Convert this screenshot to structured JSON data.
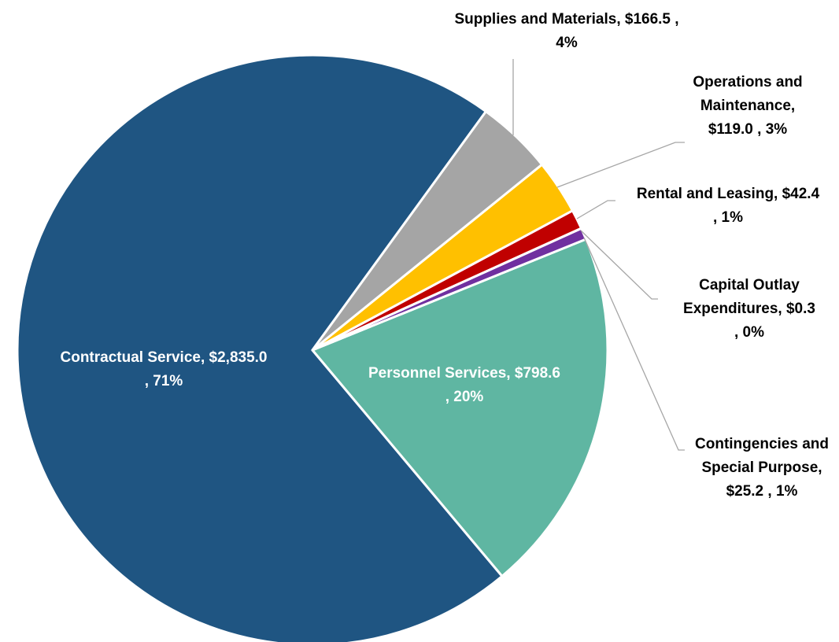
{
  "chart_data": {
    "type": "pie",
    "categories": [
      "Contractual Service,",
      "Personnel Services,",
      "Contingencies and Special Purpose,",
      "Capital Outlay Expenditures,",
      "Rental and Leasing,",
      "Operations and Maintenance,",
      "Supplies and Materials,"
    ],
    "values": [
      2835.0,
      798.6,
      25.2,
      0.3,
      42.4,
      119.0,
      166.5
    ],
    "value_labels": [
      "$2,835.0 ,",
      "$798.6 ,",
      "$25.2 ,",
      "$0.3 ,",
      "$42.4 ,",
      "$119.0 ,",
      "$166.5 ,"
    ],
    "percent_labels": [
      "71%",
      "20%",
      "1%",
      "0%",
      "1%",
      "3%",
      "4%"
    ],
    "colors": [
      "#1f5582",
      "#5fb6a2",
      "#7030a0",
      "#4472c4",
      "#c00000",
      "#ffc000",
      "#a5a5a5"
    ]
  }
}
